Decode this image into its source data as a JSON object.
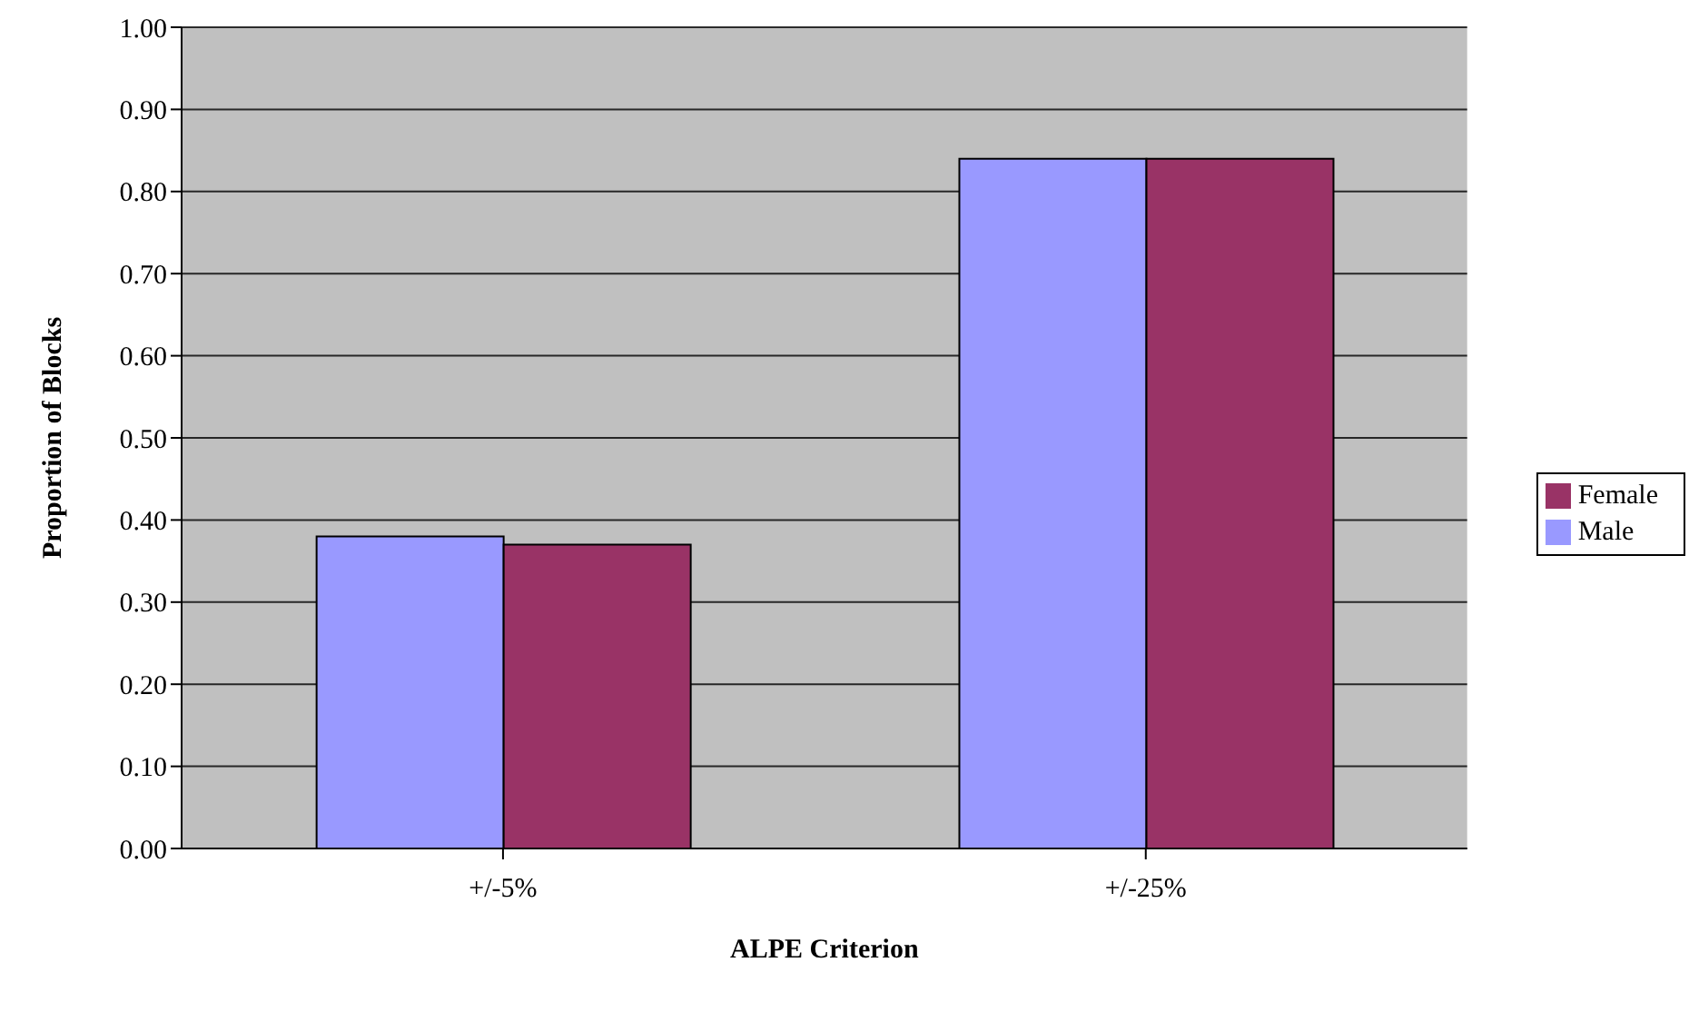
{
  "chart_data": {
    "type": "bar",
    "xlabel": "ALPE Criterion",
    "ylabel": "Proportion of Blocks",
    "categories": [
      "+/-5%",
      "+/-25%"
    ],
    "series": [
      {
        "name": "Male",
        "color": "#9999ff",
        "values": [
          0.38,
          0.84
        ]
      },
      {
        "name": "Female",
        "color": "#993366",
        "values": [
          0.37,
          0.84
        ]
      }
    ],
    "ylim": [
      0,
      1
    ],
    "yticks": [
      {
        "value": 0,
        "label": "0.00"
      },
      {
        "value": 0.1,
        "label": "0.10"
      },
      {
        "value": 0.2,
        "label": "0.20"
      },
      {
        "value": 0.3,
        "label": "0.30"
      },
      {
        "value": 0.4,
        "label": "0.40"
      },
      {
        "value": 0.5,
        "label": "0.50"
      },
      {
        "value": 0.6,
        "label": "0.60"
      },
      {
        "value": 0.7,
        "label": "0.70"
      },
      {
        "value": 0.8,
        "label": "0.80"
      },
      {
        "value": 0.9,
        "label": "0.90"
      },
      {
        "value": 1,
        "label": "1.00"
      }
    ],
    "grid": "y",
    "legend": "right"
  }
}
